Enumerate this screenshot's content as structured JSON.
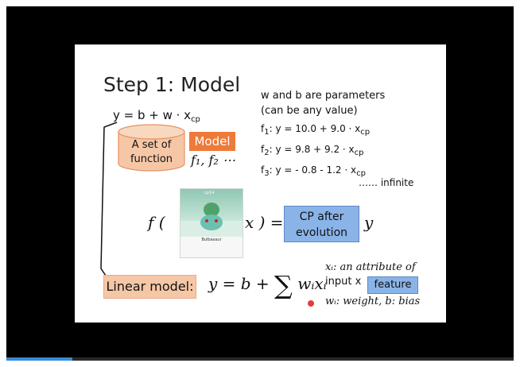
{
  "slide": {
    "title": "Step 1: Model",
    "equation_prefix": "y = b + w · x",
    "equation_sub": "cp",
    "params_line1": "w and b are parameters",
    "params_line2": "(can be any value)",
    "functions": [
      {
        "name": "f",
        "idx": "1",
        "body": ": y = 10.0 + 9.0 · x",
        "sub": "cp"
      },
      {
        "name": "f",
        "idx": "2",
        "body": ": y = 9.8 + 9.2 · x",
        "sub": "cp"
      },
      {
        "name": "f",
        "idx": "3",
        "body": ": y = - 0.8 - 1.2 · x",
        "sub": "cp"
      }
    ],
    "infinite": "…… infinite",
    "set_of_function_line1": "A set of",
    "set_of_function_line2": "function",
    "model_label": "Model",
    "f_list": "f₁, f₂ ⋯",
    "f_open": "f (",
    "pokemon_name": "Bulbasaur",
    "pokemon_cp": "cp14",
    "x_close": "x ) =",
    "cp_after_line1": "CP after",
    "cp_after_line2": "evolution",
    "y_var": "y",
    "linear_model_label": "Linear model:",
    "linear_eq_left": "y = b + ",
    "linear_eq_sigma": "∑",
    "linear_eq_right": " wᵢxᵢ",
    "xi_desc_line1": "xᵢ: an attribute of",
    "xi_desc_line2": "input x",
    "feature_label": "feature",
    "wi_desc": "wᵢ: weight, b: bias"
  },
  "colors": {
    "model_orange": "#ee7a3a",
    "cylinder_peach": "#f6c7a6",
    "box_blue": "#8ab4e8",
    "progress_blue": "#3a8ad6"
  },
  "video": {
    "progress_fraction": 0.13
  }
}
